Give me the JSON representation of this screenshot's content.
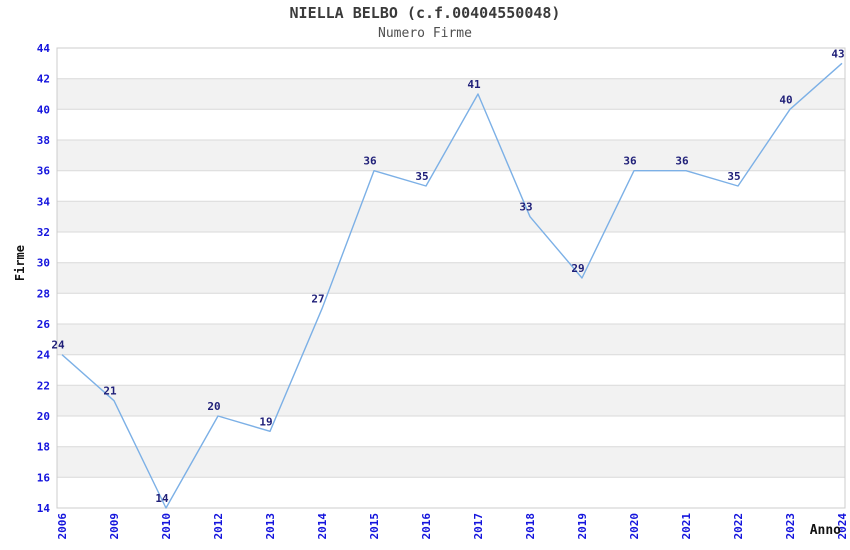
{
  "header": {
    "title": "NIELLA BELBO (c.f.00404550048)",
    "subtitle": "Numero Firme"
  },
  "chart_data": {
    "type": "line",
    "title": "NIELLA BELBO (c.f.00404550048)",
    "subtitle": "Numero Firme",
    "categories": [
      "2006",
      "2009",
      "2010",
      "2012",
      "2013",
      "2014",
      "2015",
      "2016",
      "2017",
      "2018",
      "2019",
      "2020",
      "2021",
      "2022",
      "2023",
      "2024"
    ],
    "values": [
      24,
      21,
      14,
      20,
      19,
      27,
      36,
      35,
      41,
      33,
      29,
      36,
      36,
      35,
      40,
      43
    ],
    "xlabel": "Anno",
    "ylabel": "Firme",
    "ylim": [
      14,
      44
    ],
    "ytick_step": 2,
    "ytick_labels": [
      "14",
      "16",
      "18",
      "20",
      "22",
      "24",
      "26",
      "28",
      "30",
      "32",
      "34",
      "36",
      "38",
      "40",
      "42",
      "44"
    ],
    "grid": "horizontal",
    "plot_bands": "alternating-horizontal",
    "legend": "none",
    "point_labels_visible": true,
    "x_tick_rotation": -90
  },
  "colors": {
    "background": "#ffffff",
    "line": "#7cb0e6",
    "tick_label": "#1414dd",
    "point_label": "#1f1f78",
    "grid_line": "#d9d9d9",
    "plot_border": "#cccccc",
    "band_fill": "#f2f2f2",
    "title_text": "#3a3a3a",
    "subtitle_text": "#4f4f4f",
    "axis_title_text": "#111111"
  }
}
